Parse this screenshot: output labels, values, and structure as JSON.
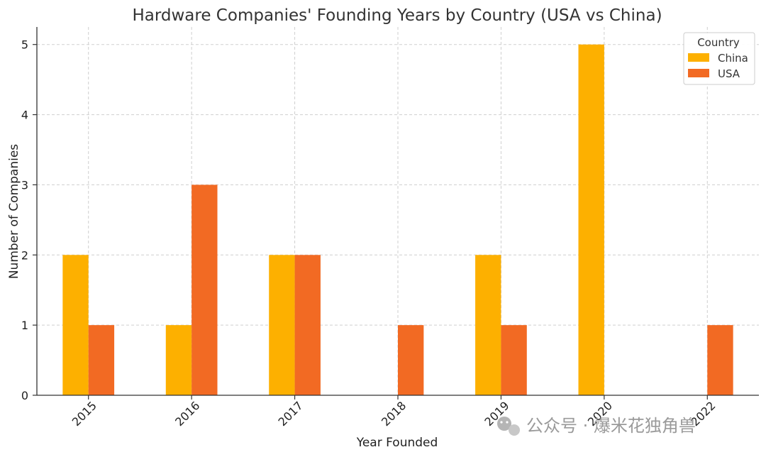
{
  "chart_data": {
    "type": "bar",
    "title": "Hardware Companies' Founding Years by Country (USA vs China)",
    "xlabel": "Year Founded",
    "ylabel": "Number of Companies",
    "categories": [
      "2015",
      "2016",
      "2017",
      "2018",
      "2019",
      "2020",
      "2022"
    ],
    "series": [
      {
        "name": "China",
        "color": "#FDB000",
        "values": [
          2,
          1,
          2,
          0,
          2,
          5,
          0
        ]
      },
      {
        "name": "USA",
        "color": "#F26A23",
        "values": [
          1,
          3,
          2,
          1,
          1,
          0,
          1
        ]
      }
    ],
    "ylim": [
      0,
      5.25
    ],
    "yticks": [
      0,
      1,
      2,
      3,
      4,
      5
    ],
    "grid": true,
    "legend": {
      "title": "Country",
      "position": "top-right"
    }
  },
  "watermark": {
    "icon": "wechat-icon",
    "text": "公众号 · 爆米花独角兽"
  }
}
